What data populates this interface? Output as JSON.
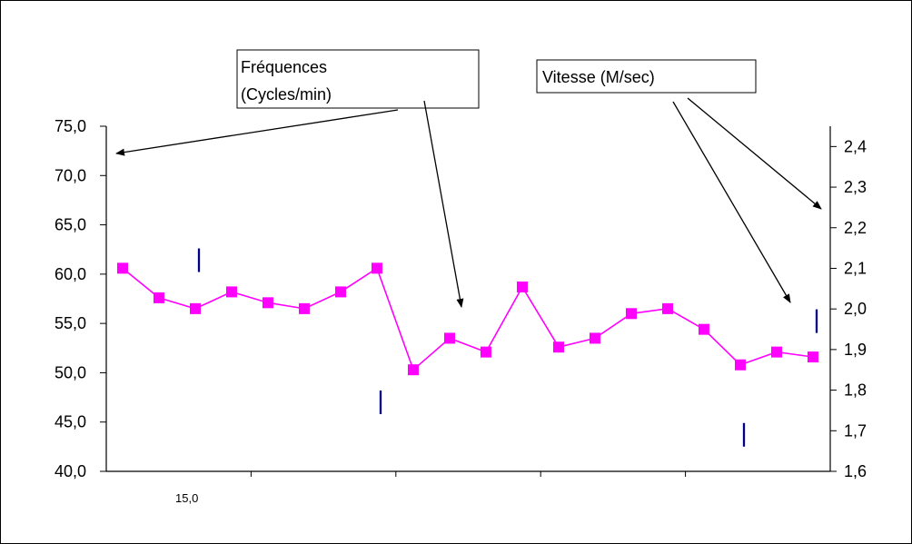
{
  "chart_data": {
    "type": "line",
    "x_tick_label": "15,0",
    "left_axis": {
      "ylim": [
        40,
        75
      ],
      "ticks": [
        "40,0",
        "45,0",
        "50,0",
        "55,0",
        "60,0",
        "65,0",
        "70,0",
        "75,0"
      ]
    },
    "right_axis": {
      "ylim": [
        1.6,
        2.45
      ],
      "ticks": [
        "1,6",
        "1,7",
        "1,8",
        "1,9",
        "2,0",
        "2,1",
        "2,2",
        "2,3",
        "2,4"
      ]
    },
    "series": [
      {
        "name": "Fréquences (Cycles/min)",
        "color": "#ff00ff",
        "marker": "square",
        "values": [
          60.6,
          57.6,
          56.5,
          58.2,
          57.1,
          56.5,
          58.2,
          60.6,
          50.3,
          53.5,
          52.1,
          58.7,
          52.6,
          53.5,
          56.0,
          56.5,
          54.4,
          50.8,
          52.1,
          51.6
        ]
      },
      {
        "name": "Vitesse (M/sec)",
        "color": "#000080",
        "marker": "dash",
        "points": [
          {
            "index": 2,
            "value": 2.12
          },
          {
            "index": 7,
            "value": 1.77
          },
          {
            "index": 17,
            "value": 1.69
          },
          {
            "index": 19,
            "value": 1.97
          }
        ]
      }
    ],
    "annotations": [
      {
        "text_lines": [
          "Fréquences",
          "(Cycles/min)"
        ]
      },
      {
        "text_lines": [
          "Vitesse (M/sec)"
        ]
      }
    ],
    "grid": false,
    "legend": "none"
  }
}
